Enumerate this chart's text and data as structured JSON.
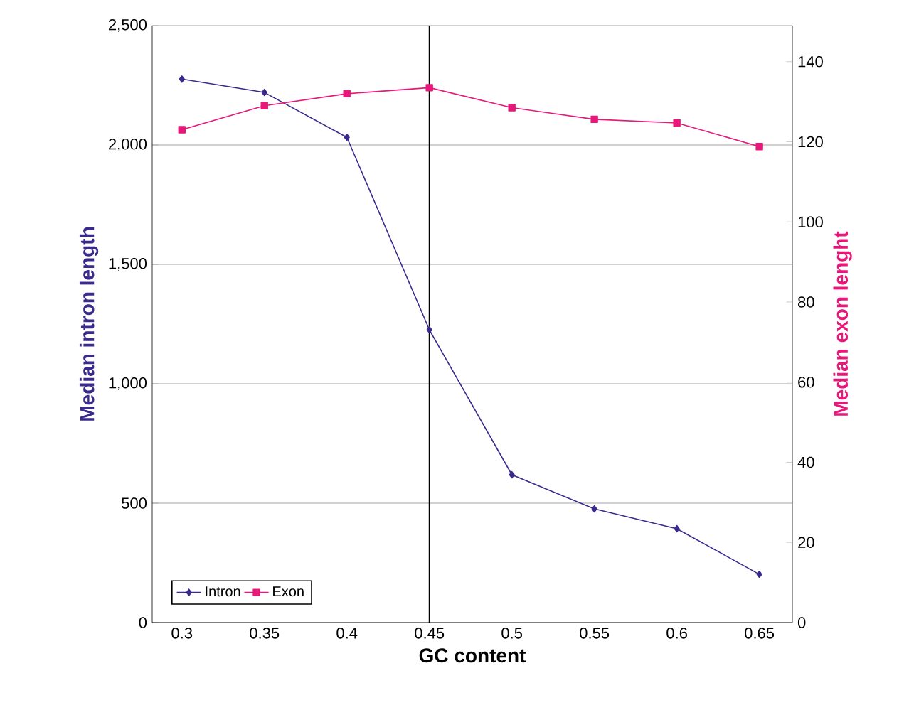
{
  "chart_data": {
    "type": "line",
    "xlabel": "GC content",
    "ylabel": "Median intron length",
    "y2label": "Median exon lenght",
    "x": [
      0.3,
      0.35,
      0.4,
      0.45,
      0.5,
      0.55,
      0.6,
      0.65
    ],
    "series": [
      {
        "name": "Intron",
        "color": "#3b2a8c",
        "marker": "diamond",
        "values": [
          2276,
          2220,
          2032,
          1226,
          619,
          476,
          393,
          202
        ]
      },
      {
        "name": "Exon",
        "color": "#e8177a",
        "marker": "square",
        "axis": "y2",
        "values": [
          123,
          129,
          132,
          133.5,
          128.5,
          125.6,
          124.7,
          118.8
        ]
      }
    ],
    "xlim": [
      0.282,
      0.67
    ],
    "xticks": [
      0.3,
      0.35,
      0.4,
      0.45,
      0.5,
      0.55,
      0.6,
      0.65
    ],
    "ylim": [
      0,
      2500
    ],
    "yticks": [
      0,
      500,
      {
        "value": 1000,
        "label": "1,000"
      },
      {
        "value": 1500,
        "label": "1,500"
      },
      {
        "value": 2000,
        "label": "2,000"
      },
      {
        "value": 2500,
        "label": "2,500"
      }
    ],
    "y2lim": [
      0,
      149
    ],
    "y2ticks": [
      0,
      20,
      40,
      60,
      80,
      100,
      120,
      140
    ],
    "ref_lines": [
      {
        "axis": "x",
        "value": 0.45,
        "color": "#000000"
      }
    ],
    "grid": "y",
    "legend": "bottom left",
    "line_style": "solid"
  }
}
